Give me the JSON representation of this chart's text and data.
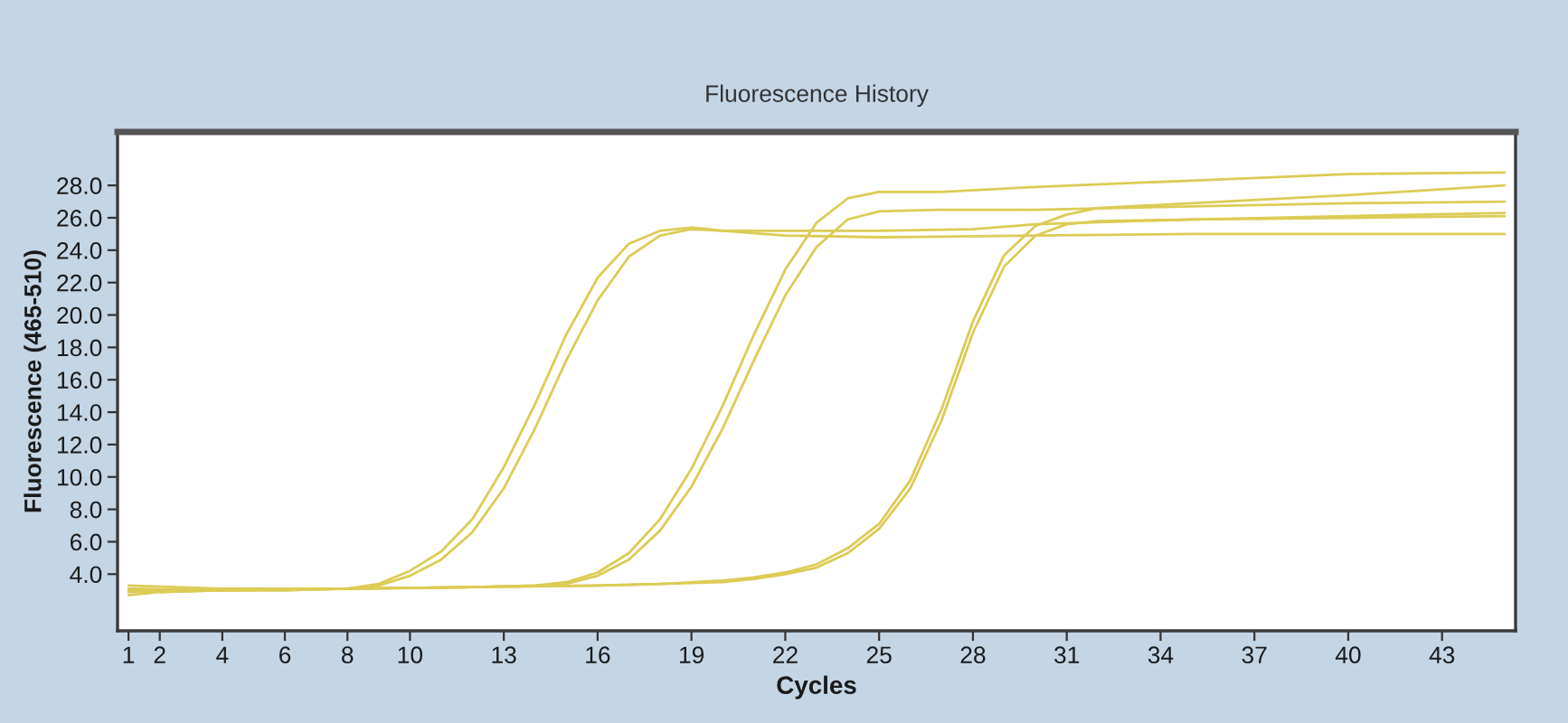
{
  "chart_data": {
    "type": "line",
    "title": "Fluorescence History",
    "xlabel": "Cycles",
    "ylabel": "Fluorescence (465-510)",
    "xlim": [
      0.65,
      45.35
    ],
    "xticks": [
      1,
      2,
      4,
      6,
      8,
      10,
      13,
      16,
      19,
      22,
      25,
      28,
      31,
      34,
      37,
      40,
      43
    ],
    "ylim": [
      0.5,
      31.3
    ],
    "yticks": [
      {
        "value": 4,
        "label": "4.0"
      },
      {
        "value": 6,
        "label": "6.0"
      },
      {
        "value": 8,
        "label": "8.0"
      },
      {
        "value": 10,
        "label": "10.0"
      },
      {
        "value": 12,
        "label": "12.0"
      },
      {
        "value": 14,
        "label": "14.0"
      },
      {
        "value": 16,
        "label": "16.0"
      },
      {
        "value": 18,
        "label": "18.0"
      },
      {
        "value": 20,
        "label": "20.0"
      },
      {
        "value": 22,
        "label": "22.0"
      },
      {
        "value": 24,
        "label": "24.0"
      },
      {
        "value": 26,
        "label": "26.0"
      },
      {
        "value": 28,
        "label": "28.0"
      }
    ],
    "series": [
      {
        "color": "#dccb55",
        "x": [
          1,
          2,
          4,
          6,
          8,
          9,
          10,
          11,
          12,
          13,
          14,
          15,
          16,
          17,
          18,
          19,
          20,
          22,
          25,
          30,
          35,
          40,
          45
        ],
        "values": [
          3.0,
          2.9,
          3.0,
          3.0,
          3.1,
          3.4,
          4.2,
          5.4,
          7.4,
          10.6,
          14.5,
          18.8,
          22.3,
          24.4,
          25.2,
          25.4,
          25.2,
          24.9,
          24.8,
          24.9,
          25.0,
          25.0,
          25.0
        ]
      },
      {
        "color": "#dccb55",
        "x": [
          1,
          2,
          4,
          6,
          8,
          9,
          10,
          11,
          12,
          13,
          14,
          15,
          16,
          17,
          18,
          19,
          20,
          22,
          25,
          28,
          30,
          35,
          40,
          45
        ],
        "values": [
          2.7,
          2.9,
          3.0,
          3.0,
          3.1,
          3.3,
          3.9,
          4.9,
          6.6,
          9.3,
          13.0,
          17.2,
          20.9,
          23.6,
          24.9,
          25.3,
          25.2,
          25.2,
          25.2,
          25.3,
          25.6,
          25.9,
          26.0,
          26.1
        ]
      },
      {
        "color": "#dccb55",
        "x": [
          1,
          4,
          8,
          12,
          14,
          15,
          16,
          17,
          18,
          19,
          20,
          21,
          22,
          23,
          24,
          25,
          27,
          30,
          35,
          40,
          45
        ],
        "values": [
          3.0,
          3.0,
          3.1,
          3.2,
          3.3,
          3.5,
          4.1,
          5.3,
          7.4,
          10.5,
          14.4,
          18.8,
          22.8,
          25.7,
          27.2,
          27.6,
          27.6,
          27.9,
          28.3,
          28.7,
          28.8
        ]
      },
      {
        "color": "#dccb55",
        "x": [
          1,
          4,
          8,
          12,
          14,
          15,
          16,
          17,
          18,
          19,
          20,
          21,
          22,
          23,
          24,
          25,
          27,
          30,
          35,
          40,
          45
        ],
        "values": [
          3.1,
          3.0,
          3.1,
          3.2,
          3.3,
          3.4,
          3.9,
          4.9,
          6.7,
          9.4,
          13.0,
          17.2,
          21.2,
          24.2,
          25.9,
          26.4,
          26.5,
          26.5,
          26.7,
          26.9,
          27.0
        ]
      },
      {
        "color": "#dccb55",
        "x": [
          1,
          4,
          8,
          12,
          16,
          18,
          20,
          21,
          22,
          23,
          24,
          25,
          26,
          27,
          28,
          29,
          30,
          31,
          32,
          35,
          40,
          45
        ],
        "values": [
          2.9,
          3.0,
          3.1,
          3.2,
          3.3,
          3.4,
          3.6,
          3.8,
          4.1,
          4.6,
          5.6,
          7.1,
          9.8,
          14.2,
          19.6,
          23.7,
          25.5,
          26.2,
          26.6,
          26.9,
          27.4,
          28.0
        ]
      },
      {
        "color": "#dccb55",
        "x": [
          1,
          4,
          8,
          12,
          16,
          18,
          20,
          21,
          22,
          23,
          24,
          25,
          26,
          27,
          28,
          29,
          30,
          31,
          32,
          35,
          40,
          45
        ],
        "values": [
          3.3,
          3.1,
          3.1,
          3.2,
          3.3,
          3.4,
          3.5,
          3.7,
          4.0,
          4.4,
          5.3,
          6.8,
          9.3,
          13.5,
          18.9,
          23.0,
          24.9,
          25.6,
          25.8,
          25.9,
          26.1,
          26.3
        ]
      }
    ]
  }
}
